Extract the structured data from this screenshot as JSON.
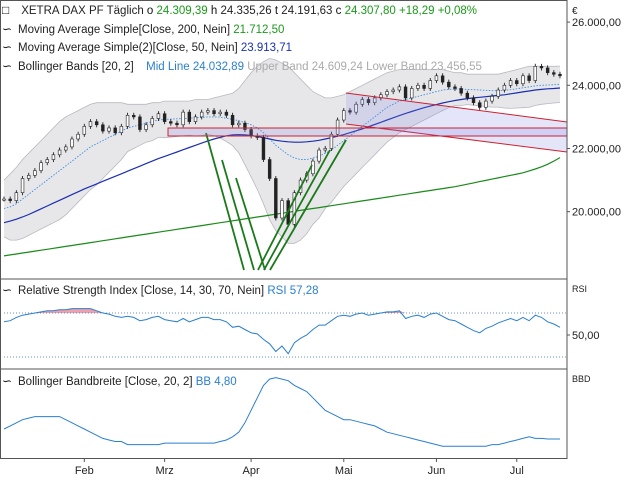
{
  "header": {
    "instrument": "XETRA DAX PF",
    "period": "Täglich",
    "open_label": "o",
    "open": "24.309,39",
    "high_label": "h",
    "high": "24.335,26",
    "low_label": "t",
    "low": "24.191,63",
    "close_label": "c",
    "close": "24.307,80",
    "change": "+18,29",
    "change_pct": "+0,08%"
  },
  "currency_symbol": "€",
  "indicators": {
    "ma200": {
      "label": "Moving Average Simple",
      "params": "[Close, 200, Nein]",
      "value": "21.712,50",
      "color": "#1a8a1a"
    },
    "ma50": {
      "label": "Moving Average Simple(2)",
      "params": "[Close, 50, Nein]",
      "value": "23.913,71",
      "color": "#1a2fb0"
    },
    "bb": {
      "label": "Bollinger Bands",
      "params": "[20, 2]",
      "mid_label": "Mid Line",
      "mid": "24.032,89",
      "upper_label": "Upper Band",
      "upper": "24.609,24",
      "lower_label": "Lower Band",
      "lower": "23.456,55"
    },
    "rsi": {
      "label": "Relative Strength Index",
      "params": "[Close, 14, 30, 70, Nein]",
      "value_label": "RSI",
      "value": "57,28"
    },
    "bbw": {
      "label": "Bollinger Bandbreite",
      "params": "[Close, 20, 2]",
      "value_label": "BB",
      "value": "4,80"
    }
  },
  "panels": {
    "rsi_tag": "RSI",
    "bbw_tag": "BBD"
  },
  "chart_data": {
    "type": "line",
    "x_labels": [
      "Feb",
      "Mrz",
      "Apr",
      "Mai",
      "Jun",
      "Jul"
    ],
    "price": {
      "y_ticks": [
        "26.000,00",
        "24.000,00",
        "22.000,00",
        "20.000,00"
      ],
      "y_tick_values": [
        26000,
        24000,
        22000,
        20000
      ],
      "ylim": [
        17900,
        26700
      ],
      "close": [
        20400,
        20350,
        20600,
        21050,
        21150,
        21300,
        21550,
        21650,
        21800,
        21950,
        22050,
        22300,
        22450,
        22700,
        22850,
        22750,
        22550,
        22650,
        22500,
        22700,
        23050,
        23000,
        22600,
        22750,
        22950,
        23100,
        22850,
        22800,
        22750,
        23150,
        22850,
        23000,
        23150,
        23200,
        23100,
        23150,
        23050,
        22750,
        22800,
        22600,
        22400,
        22350,
        21650,
        21050,
        19800,
        20350,
        19600,
        20600,
        21000,
        21200,
        21600,
        21950,
        22000,
        22450,
        22900,
        23200,
        23150,
        23400,
        23550,
        23450,
        23600,
        23700,
        23800,
        23850,
        23950,
        23600,
        23900,
        24000,
        23900,
        24150,
        24300,
        24100,
        23950,
        23900,
        23750,
        23600,
        23450,
        23300,
        23500,
        23650,
        23850,
        24000,
        24150,
        24050,
        24300,
        24150,
        24600,
        24550,
        24400,
        24350,
        24300
      ],
      "ma200": [
        18600,
        18630,
        18660,
        18690,
        18720,
        18750,
        18780,
        18810,
        18840,
        18870,
        18900,
        18930,
        18960,
        18990,
        19020,
        19050,
        19080,
        19110,
        19140,
        19170,
        19200,
        19230,
        19260,
        19290,
        19320,
        19350,
        19380,
        19410,
        19440,
        19470,
        19500,
        19530,
        19560,
        19590,
        19620,
        19650,
        19680,
        19710,
        19740,
        19770,
        19800,
        19830,
        19860,
        19890,
        19920,
        19950,
        19980,
        20010,
        20040,
        20070,
        20100,
        20130,
        20160,
        20190,
        20220,
        20250,
        20280,
        20310,
        20340,
        20370,
        20400,
        20430,
        20460,
        20490,
        20520,
        20550,
        20580,
        20610,
        20640,
        20670,
        20700,
        20730,
        20760,
        20790,
        20830,
        20870,
        20910,
        20950,
        20990,
        21030,
        21070,
        21110,
        21150,
        21190,
        21230,
        21290,
        21350,
        21420,
        21500,
        21600,
        21712
      ],
      "ma50": [
        19650,
        19700,
        19760,
        19830,
        19910,
        20000,
        20090,
        20180,
        20270,
        20360,
        20450,
        20540,
        20630,
        20720,
        20800,
        20880,
        20960,
        21040,
        21120,
        21200,
        21280,
        21360,
        21440,
        21520,
        21600,
        21680,
        21750,
        21820,
        21890,
        21960,
        22030,
        22100,
        22170,
        22240,
        22300,
        22350,
        22400,
        22430,
        22440,
        22430,
        22410,
        22380,
        22340,
        22300,
        22260,
        22230,
        22210,
        22200,
        22200,
        22210,
        22230,
        22260,
        22300,
        22340,
        22390,
        22440,
        22500,
        22560,
        22620,
        22690,
        22760,
        22830,
        22900,
        22970,
        23040,
        23110,
        23170,
        23230,
        23290,
        23340,
        23390,
        23440,
        23480,
        23520,
        23550,
        23580,
        23600,
        23620,
        23640,
        23660,
        23680,
        23700,
        23730,
        23760,
        23790,
        23820,
        23850,
        23870,
        23890,
        23900,
        23913
      ],
      "bb_mid": [
        20100,
        20150,
        20250,
        20400,
        20550,
        20700,
        20850,
        21000,
        21150,
        21300,
        21450,
        21600,
        21750,
        21900,
        22050,
        22150,
        22250,
        22350,
        22450,
        22550,
        22650,
        22700,
        22750,
        22800,
        22850,
        22900,
        22920,
        22930,
        22940,
        22950,
        22960,
        22970,
        22980,
        23000,
        23000,
        22990,
        22960,
        22920,
        22880,
        22820,
        22750,
        22650,
        22500,
        22300,
        22100,
        21950,
        21800,
        21700,
        21650,
        21650,
        21700,
        21750,
        21850,
        21950,
        22100,
        22250,
        22400,
        22550,
        22700,
        22850,
        23000,
        23150,
        23300,
        23400,
        23500,
        23550,
        23600,
        23650,
        23700,
        23750,
        23800,
        23850,
        23870,
        23880,
        23880,
        23870,
        23860,
        23850,
        23840,
        23830,
        23830,
        23840,
        23860,
        23890,
        23920,
        23950,
        23980,
        24000,
        24010,
        24020,
        24033
      ],
      "bb_upper": [
        21000,
        21200,
        21400,
        21650,
        21850,
        22050,
        22250,
        22450,
        22650,
        22850,
        23000,
        23100,
        23200,
        23300,
        23400,
        23450,
        23450,
        23450,
        23450,
        23450,
        23400,
        23400,
        23400,
        23400,
        23450,
        23450,
        23500,
        23500,
        23500,
        23500,
        23500,
        23550,
        23550,
        23550,
        23600,
        23650,
        23700,
        23750,
        23900,
        24150,
        24400,
        24600,
        24750,
        24850,
        24800,
        24700,
        24600,
        24400,
        24200,
        24000,
        23800,
        23700,
        23600,
        23600,
        23650,
        23700,
        23800,
        23900,
        24000,
        24100,
        24200,
        24300,
        24400,
        24450,
        24500,
        24500,
        24500,
        24500,
        24500,
        24500,
        24500,
        24500,
        24450,
        24400,
        24400,
        24350,
        24350,
        24350,
        24350,
        24350,
        24350,
        24400,
        24450,
        24500,
        24550,
        24600,
        24600,
        24600,
        24600,
        24600,
        24609
      ],
      "bb_lower": [
        19200,
        19100,
        19100,
        19150,
        19250,
        19350,
        19450,
        19550,
        19650,
        19750,
        19900,
        20100,
        20300,
        20500,
        20700,
        20850,
        21050,
        21250,
        21450,
        21650,
        21900,
        22000,
        22100,
        22200,
        22250,
        22350,
        22340,
        22360,
        22380,
        22400,
        22420,
        22390,
        22410,
        22450,
        22400,
        22330,
        22220,
        22090,
        21860,
        21490,
        21100,
        20700,
        20250,
        19750,
        19400,
        19200,
        19000,
        19000,
        19100,
        19300,
        19600,
        19800,
        20100,
        20300,
        20550,
        20800,
        21000,
        21200,
        21400,
        21600,
        21800,
        22000,
        22200,
        22350,
        22500,
        22600,
        22700,
        22800,
        22900,
        23000,
        23100,
        23200,
        23290,
        23360,
        23360,
        23390,
        23370,
        23350,
        23330,
        23310,
        23310,
        23280,
        23270,
        23280,
        23290,
        23300,
        23360,
        23400,
        23420,
        23440,
        23456
      ]
    },
    "rsi": {
      "y_ticks": [
        "50,00"
      ],
      "y_tick_values": [
        50
      ],
      "ylim": [
        20,
        100
      ],
      "levels": [
        30,
        70
      ],
      "values": [
        62,
        63,
        66,
        68,
        69,
        70,
        71,
        72,
        72,
        73,
        73,
        74,
        74,
        74,
        74,
        72,
        70,
        69,
        67,
        66,
        67,
        66,
        63,
        64,
        66,
        67,
        64,
        63,
        62,
        65,
        62,
        64,
        66,
        66,
        64,
        64,
        62,
        57,
        58,
        55,
        52,
        51,
        46,
        42,
        35,
        40,
        33,
        43,
        47,
        50,
        55,
        59,
        59,
        63,
        67,
        68,
        67,
        69,
        70,
        68,
        69,
        70,
        71,
        71,
        72,
        65,
        67,
        68,
        66,
        69,
        70,
        67,
        64,
        63,
        60,
        57,
        54,
        52,
        56,
        58,
        61,
        63,
        65,
        63,
        66,
        63,
        68,
        66,
        62,
        60,
        57
      ]
    },
    "bbw": {
      "ylim": [
        0,
        25
      ],
      "values": [
        8,
        9,
        10,
        11,
        11.5,
        12,
        12,
        12,
        12,
        12,
        11,
        10,
        9,
        8,
        7,
        6,
        5,
        4.5,
        4,
        4,
        3,
        3,
        3,
        3,
        3,
        3,
        3.5,
        3.5,
        3.5,
        3.5,
        3.5,
        3.5,
        3.5,
        3.5,
        3.5,
        4,
        4.5,
        5.5,
        7,
        10,
        14,
        18,
        22,
        24,
        24.5,
        24,
        23.5,
        22,
        21,
        20,
        18,
        16,
        14,
        13,
        12,
        11,
        11,
        10.5,
        10,
        9.5,
        9,
        8,
        7,
        6.5,
        6,
        5.5,
        5,
        4.5,
        4,
        3.5,
        3,
        2.5,
        2.5,
        2.5,
        2.5,
        2.5,
        2.5,
        2.5,
        2.5,
        3,
        3,
        3.5,
        4,
        4.5,
        5,
        5.5,
        5,
        5,
        4.8,
        4.8,
        4.8
      ]
    }
  }
}
